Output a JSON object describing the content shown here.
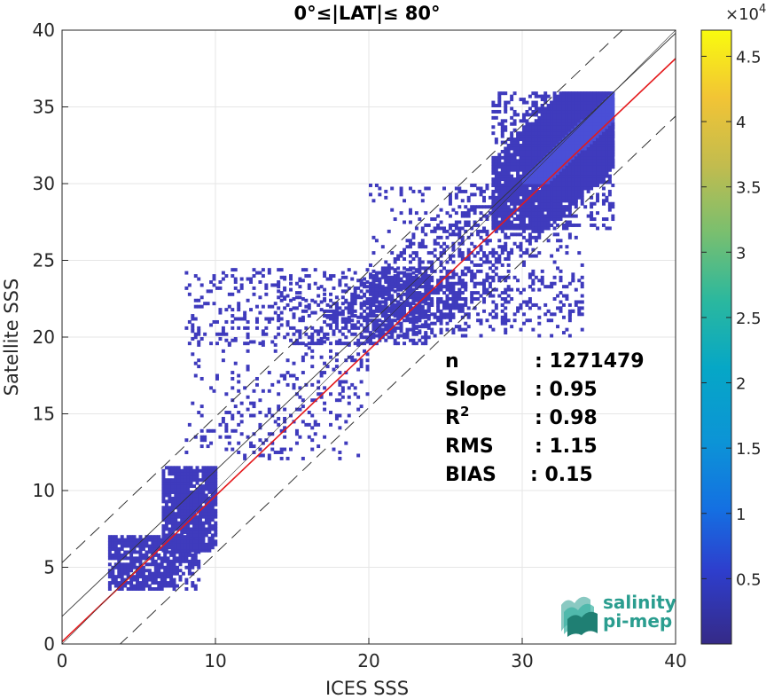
{
  "chart_data": {
    "type": "heatmap",
    "title": "0°≤|LAT|≤ 80°",
    "xlabel": "ICES SSS",
    "ylabel": "Satellite SSS",
    "xlim": [
      0,
      40
    ],
    "ylim": [
      0,
      40
    ],
    "x_ticks": [
      "0",
      "10",
      "20",
      "30",
      "40"
    ],
    "y_ticks": [
      "0",
      "5",
      "10",
      "15",
      "20",
      "25",
      "30",
      "35",
      "40"
    ],
    "grid": true,
    "colorbar": {
      "range": [
        0,
        47000
      ],
      "exponent_label": "×10",
      "exponent_power": "4",
      "ticks": [
        {
          "value": 0.5,
          "label": "0.5"
        },
        {
          "value": 1,
          "label": "1"
        },
        {
          "value": 1.5,
          "label": "1.5"
        },
        {
          "value": 2,
          "label": "2"
        },
        {
          "value": 2.5,
          "label": "2.5"
        },
        {
          "value": 3,
          "label": "3"
        },
        {
          "value": 3.5,
          "label": "3.5"
        },
        {
          "value": 4,
          "label": "4"
        },
        {
          "value": 4.5,
          "label": "4.5"
        }
      ],
      "max_value": 4.7,
      "colormap": "parula"
    },
    "reference_lines": {
      "one_to_one": {
        "slope": 1,
        "intercept": 0,
        "color": "#000000"
      },
      "regression": {
        "slope": 0.95,
        "intercept": 0.15,
        "color": "#e41a1c"
      },
      "fit_line": {
        "slope": 0.95,
        "intercept": 1.8,
        "color": "#000000"
      },
      "dashed_offset": 3.5
    },
    "density_regions": [
      {
        "x": [
          3,
          9
        ],
        "y": [
          3.5,
          7
        ],
        "level": 0.8
      },
      {
        "x": [
          6.5,
          10
        ],
        "y": [
          6,
          11.5
        ],
        "level": 0.9
      },
      {
        "x": [
          8,
          20
        ],
        "y": [
          12,
          20
        ],
        "level": 0.15
      },
      {
        "x": [
          8,
          24
        ],
        "y": [
          19.5,
          24.5
        ],
        "level": 0.5
      },
      {
        "x": [
          14,
          34
        ],
        "y": [
          21,
          24
        ],
        "level": 0.45
      },
      {
        "x": [
          20,
          34
        ],
        "y": [
          20,
          30
        ],
        "level": 0.35
      },
      {
        "x": [
          28,
          36
        ],
        "y": [
          27,
          36
        ],
        "level": 0.9
      },
      {
        "x": [
          30,
          36
        ],
        "y": [
          30,
          36
        ],
        "level": 1
      }
    ],
    "stats": [
      {
        "label": "n",
        "value": ": 1271479"
      },
      {
        "label": "Slope",
        "value": ": 0.95"
      },
      {
        "label": "R",
        "sup": "2",
        "value": ": 0.98"
      },
      {
        "label": "RMS",
        "value": ": 1.15"
      },
      {
        "label": "BIAS",
        "value": ": 0.15"
      }
    ]
  },
  "logo": {
    "line1": "salinity",
    "line2": "pi-mep"
  }
}
